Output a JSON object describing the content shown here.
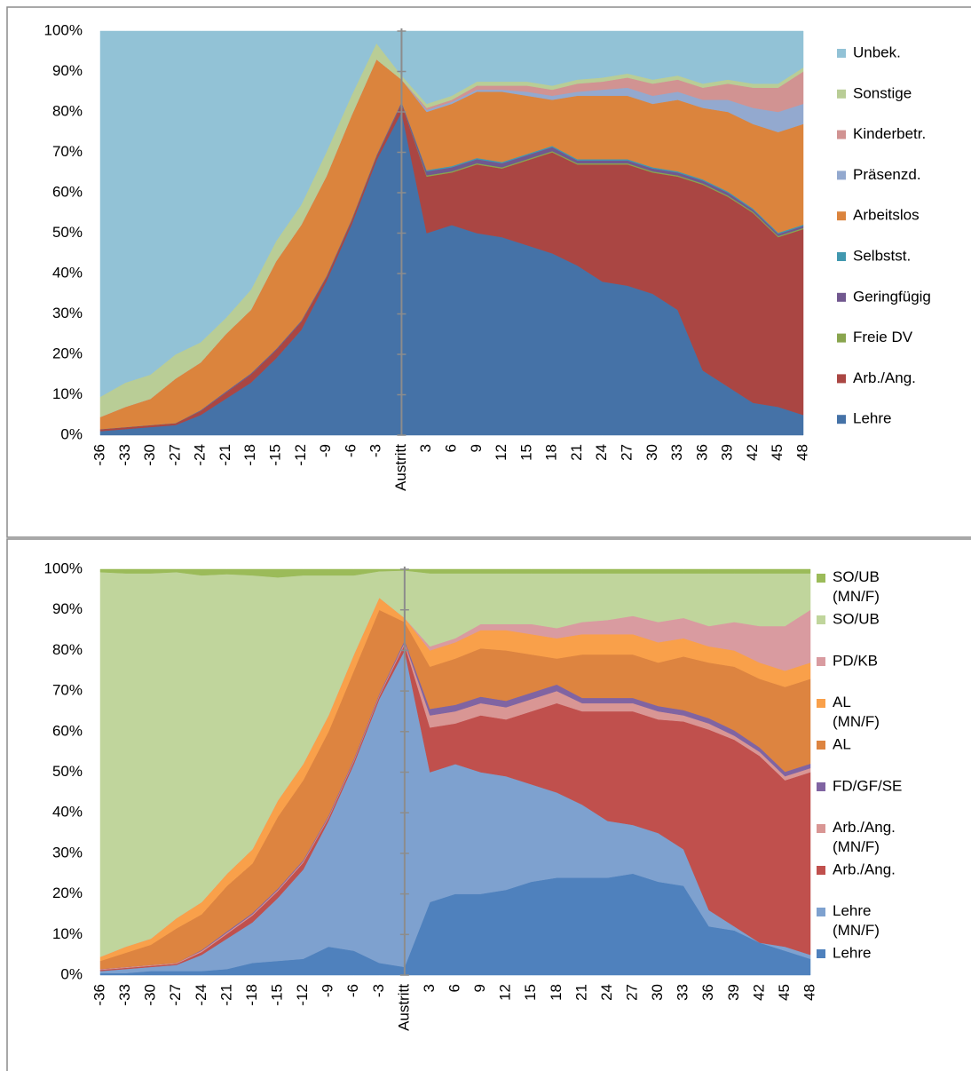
{
  "chart_data": [
    {
      "type": "stacked_area",
      "categories": [
        "-36",
        "-33",
        "-30",
        "-27",
        "-24",
        "-21",
        "-18",
        "-15",
        "-12",
        "-9",
        "-6",
        "-3",
        "Austritt",
        "3",
        "6",
        "9",
        "12",
        "15",
        "18",
        "21",
        "24",
        "27",
        "30",
        "33",
        "36",
        "39",
        "42",
        "45",
        "48"
      ],
      "ylim": [
        0,
        100
      ],
      "yticks": [
        {
          "value": 0,
          "label": "0%"
        },
        {
          "value": 10,
          "label": "10%"
        },
        {
          "value": 20,
          "label": "20%"
        },
        {
          "value": 30,
          "label": "30%"
        },
        {
          "value": 40,
          "label": "40%"
        },
        {
          "value": 50,
          "label": "50%"
        },
        {
          "value": 60,
          "label": "60%"
        },
        {
          "value": 70,
          "label": "70%"
        },
        {
          "value": 80,
          "label": "80%"
        },
        {
          "value": 90,
          "label": "90%"
        },
        {
          "value": 100,
          "label": "100%"
        }
      ],
      "legend": "right",
      "series": [
        {
          "name": "Lehre",
          "color": "#4572a7",
          "values": [
            1,
            1.5,
            2,
            2.5,
            5,
            9,
            13,
            19,
            26,
            38,
            52,
            68,
            80,
            50,
            52,
            50,
            49,
            47,
            45,
            42,
            38,
            37,
            35,
            31,
            16,
            12,
            8,
            7,
            5
          ]
        },
        {
          "name": "Arb./Ang.",
          "color": "#aa4643",
          "values": [
            0.5,
            0.5,
            0.5,
            0.5,
            1,
            1.5,
            2,
            2,
            2,
            1,
            1,
            1,
            2,
            14,
            13,
            17,
            17,
            21,
            25,
            25,
            29,
            30,
            30,
            33,
            46,
            47,
            47,
            42,
            46
          ]
        },
        {
          "name": "Freie DV",
          "color": "#89a54e",
          "values": [
            0,
            0,
            0,
            0,
            0,
            0,
            0,
            0,
            0,
            0,
            0,
            0,
            0,
            0.3,
            0.3,
            0.3,
            0.3,
            0.3,
            0.3,
            0.3,
            0.3,
            0.3,
            0.3,
            0.3,
            0.3,
            0.3,
            0.3,
            0.3,
            0.3
          ]
        },
        {
          "name": "Geringfügig",
          "color": "#71588f",
          "values": [
            0,
            0,
            0,
            0,
            0.2,
            0.3,
            0.3,
            0.3,
            0.3,
            0.3,
            0.3,
            0.3,
            0.5,
            1,
            1,
            1,
            1,
            1,
            1,
            0.7,
            0.7,
            0.7,
            0.7,
            0.7,
            0.7,
            0.7,
            0.5,
            0.5,
            0.5
          ]
        },
        {
          "name": "Selbstst.",
          "color": "#4198af",
          "values": [
            0,
            0,
            0,
            0,
            0,
            0,
            0,
            0,
            0,
            0,
            0,
            0,
            0,
            0.3,
            0.3,
            0.3,
            0.3,
            0.3,
            0.3,
            0.3,
            0.3,
            0.3,
            0.3,
            0.3,
            0.3,
            0.3,
            0.3,
            0.3,
            0.3
          ]
        },
        {
          "name": "Arbeitslos",
          "color": "#db843d",
          "values": [
            3,
            5,
            6.5,
            11,
            11.8,
            14.2,
            15.7,
            21.7,
            23.7,
            24.7,
            25.7,
            23.7,
            5.5,
            14.4,
            15.4,
            16.4,
            17.4,
            14.4,
            11.4,
            15.7,
            15.7,
            15.7,
            15.7,
            17.7,
            17.7,
            19.7,
            20.9,
            24.9,
            24.9
          ]
        },
        {
          "name": "Präsenzd.",
          "color": "#93a9cf",
          "values": [
            0,
            0,
            0,
            0,
            0,
            0,
            0,
            0,
            0,
            0,
            0,
            0,
            0,
            0.5,
            0.5,
            0.5,
            0.5,
            1,
            1,
            1,
            1.5,
            2,
            2,
            2,
            2,
            3,
            4,
            5,
            5
          ]
        },
        {
          "name": "Kinderbetr.",
          "color": "#d19392",
          "values": [
            0,
            0,
            0,
            0,
            0,
            0,
            0,
            0,
            0,
            0,
            0,
            0,
            0,
            0.5,
            0.5,
            1,
            1,
            1.5,
            1.5,
            2,
            2,
            2.5,
            3,
            3,
            3,
            4,
            5,
            6,
            8
          ]
        },
        {
          "name": "Sonstige",
          "color": "#b9cd96",
          "values": [
            5,
            6,
            6,
            6,
            5,
            4,
            5,
            5,
            5,
            6,
            5,
            4,
            1,
            1,
            1,
            1,
            1,
            1,
            1,
            1,
            1,
            1,
            1,
            1,
            1,
            1,
            1,
            1,
            1
          ]
        },
        {
          "name": "Unbek.",
          "color": "#92c2d6",
          "values": [
            90.5,
            87,
            85,
            80,
            77,
            71,
            64,
            52,
            43,
            30,
            16,
            3,
            11,
            18,
            16,
            12.5,
            12.5,
            12.5,
            13.5,
            12,
            11.5,
            10.5,
            12,
            11,
            13,
            12,
            13,
            13,
            9
          ]
        }
      ]
    },
    {
      "type": "stacked_area",
      "categories": [
        "-36",
        "-33",
        "-30",
        "-27",
        "-24",
        "-21",
        "-18",
        "-15",
        "-12",
        "-9",
        "-6",
        "-3",
        "Austritt",
        "3",
        "6",
        "9",
        "12",
        "15",
        "18",
        "21",
        "24",
        "27",
        "30",
        "33",
        "36",
        "39",
        "42",
        "45",
        "48"
      ],
      "ylim": [
        0,
        100
      ],
      "yticks": [
        {
          "value": 0,
          "label": "0%"
        },
        {
          "value": 10,
          "label": "10%"
        },
        {
          "value": 20,
          "label": "20%"
        },
        {
          "value": 30,
          "label": "30%"
        },
        {
          "value": 40,
          "label": "40%"
        },
        {
          "value": 50,
          "label": "50%"
        },
        {
          "value": 60,
          "label": "60%"
        },
        {
          "value": 70,
          "label": "70%"
        },
        {
          "value": 80,
          "label": "80%"
        },
        {
          "value": 90,
          "label": "90%"
        },
        {
          "value": 100,
          "label": "100%"
        }
      ],
      "legend": "right",
      "series": [
        {
          "name": "Lehre",
          "color": "#4f81bd",
          "values": [
            0.5,
            0.5,
            1,
            1,
            1,
            1.5,
            3,
            3.5,
            4,
            7,
            6,
            3,
            2,
            18,
            20,
            20,
            21,
            23,
            24,
            24,
            24,
            25,
            23,
            22,
            12,
            11,
            8,
            6,
            4
          ]
        },
        {
          "name": "Lehre (MN/F)",
          "color": "#7ea1cf",
          "values": [
            0.5,
            1,
            1,
            1.5,
            4,
            7.5,
            10,
            15.5,
            22,
            31,
            46,
            65,
            78,
            32,
            32,
            30,
            28,
            24,
            21,
            18,
            14,
            12,
            12,
            9,
            4,
            1,
            0,
            1,
            1
          ]
        },
        {
          "name": "Arb./Ang.",
          "color": "#c0504d",
          "values": [
            0.3,
            0.3,
            0.3,
            0.3,
            0.7,
            1.2,
            1.7,
            1.7,
            1.7,
            0.7,
            0.7,
            0.7,
            1.5,
            11,
            10,
            14,
            14,
            18,
            22,
            23,
            27,
            28,
            28,
            31.5,
            44.5,
            46,
            46,
            41,
            45
          ]
        },
        {
          "name": "Arb./Ang. (MN/F)",
          "color": "#d99694",
          "values": [
            0.2,
            0.2,
            0.2,
            0.2,
            0.3,
            0.3,
            0.3,
            0.3,
            0.3,
            0.3,
            0.3,
            0.3,
            0.5,
            3,
            3,
            3,
            3,
            3,
            3,
            2,
            2,
            2,
            2,
            1.5,
            1.5,
            1,
            1,
            1,
            1
          ]
        },
        {
          "name": "FD/GF/SE",
          "color": "#8064a2",
          "values": [
            0,
            0,
            0,
            0,
            0.2,
            0.3,
            0.3,
            0.3,
            0.3,
            0.3,
            0.3,
            0.3,
            0.5,
            1.6,
            1.6,
            1.6,
            1.6,
            1.6,
            1.6,
            1.3,
            1.3,
            1.3,
            1.3,
            1.3,
            1.3,
            1.3,
            1.1,
            1.1,
            1.1
          ]
        },
        {
          "name": "AL",
          "color": "#dd8440",
          "values": [
            2,
            3.5,
            5,
            8.5,
            8.8,
            11.2,
            12.2,
            17.7,
            19.7,
            20.7,
            21.7,
            20.7,
            4.5,
            10.4,
            11.4,
            11.9,
            12.4,
            9.4,
            6.4,
            10.7,
            10.7,
            10.7,
            10.7,
            13.2,
            13.7,
            15.7,
            16.9,
            20.9,
            20.9
          ]
        },
        {
          "name": "AL (MN/F)",
          "color": "#f9a04a",
          "values": [
            1,
            1.5,
            1.5,
            2.5,
            3,
            3,
            3.5,
            4,
            4,
            4,
            4,
            3,
            1,
            4,
            4,
            4.5,
            5,
            5,
            5,
            5,
            5,
            5,
            5,
            4.5,
            4,
            4,
            4,
            4,
            4
          ]
        },
        {
          "name": "PD/KB",
          "color": "#d99ba0",
          "values": [
            0,
            0,
            0,
            0,
            0,
            0,
            0,
            0,
            0,
            0,
            0,
            0,
            0,
            1,
            1,
            1.5,
            1.5,
            2.5,
            2.5,
            3,
            3.5,
            4.5,
            5,
            5,
            5,
            7,
            9,
            11,
            13
          ]
        },
        {
          "name": "SO/UB",
          "color": "#c0d59c",
          "values": [
            94.8,
            92,
            90,
            85.3,
            80.5,
            73.8,
            67.5,
            55,
            46.5,
            34.5,
            19.5,
            6.5,
            11.7,
            18,
            16,
            12.5,
            12.5,
            12.5,
            13.5,
            12,
            11.5,
            10.5,
            12,
            11,
            13,
            12,
            13,
            13,
            9
          ]
        },
        {
          "name": "SO/UB (MN/F)",
          "color": "#9bbb59",
          "values": [
            0.7,
            1,
            1,
            0.7,
            1.5,
            1.2,
            1.5,
            2,
            1.5,
            1.5,
            1.5,
            0.5,
            0.3,
            1,
            1,
            1,
            1,
            1,
            1,
            1,
            1,
            1,
            1,
            1,
            1,
            1,
            1,
            1,
            1
          ]
        }
      ]
    }
  ]
}
